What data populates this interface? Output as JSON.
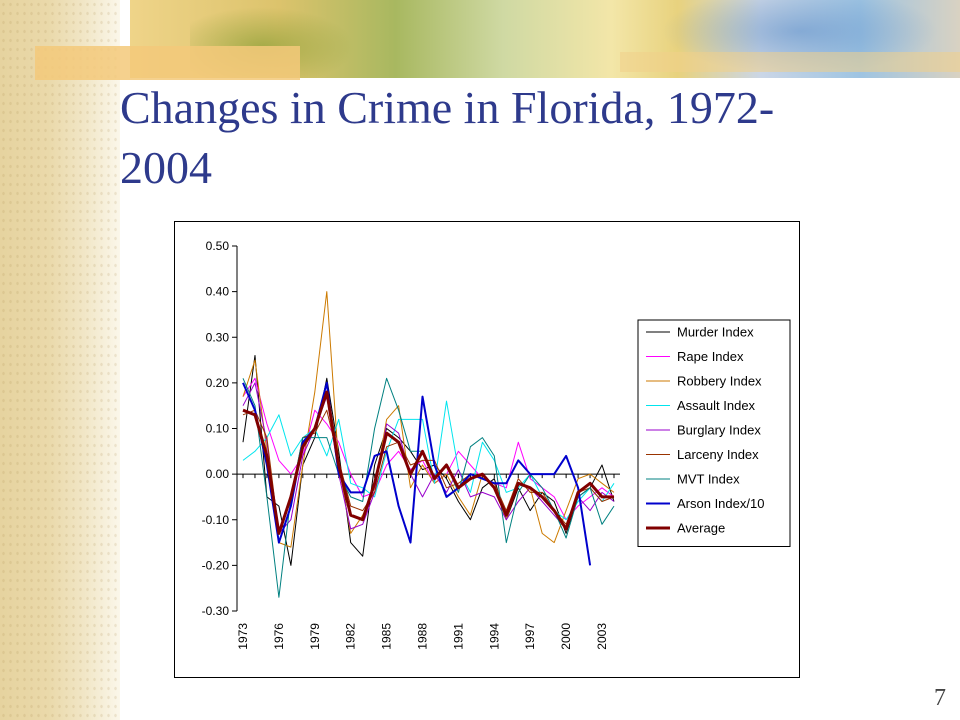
{
  "slide": {
    "title": "Changes in Crime in Florida, 1972-\n2004",
    "page_number": "7"
  },
  "chart_data": {
    "type": "line",
    "title": "",
    "xlabel": "",
    "ylabel": "",
    "ylim": [
      -0.3,
      0.5
    ],
    "y_ticks": [
      "0.50",
      "0.40",
      "0.30",
      "0.20",
      "0.10",
      "0.00",
      "-0.10",
      "-0.20",
      "-0.30"
    ],
    "x_tick_labels": [
      "1973",
      "1976",
      "1979",
      "1982",
      "1985",
      "1988",
      "1991",
      "1994",
      "1997",
      "2000",
      "2003"
    ],
    "x": [
      1973,
      1974,
      1975,
      1976,
      1977,
      1978,
      1979,
      1980,
      1981,
      1982,
      1983,
      1984,
      1985,
      1986,
      1987,
      1988,
      1989,
      1990,
      1991,
      1992,
      1993,
      1994,
      1995,
      1996,
      1997,
      1998,
      1999,
      2000,
      2001,
      2002,
      2003,
      2004
    ],
    "legend_position": "right",
    "grid": false,
    "series": [
      {
        "name": "Murder Index",
        "color": "#000000",
        "width": 1,
        "values": [
          0.07,
          0.26,
          -0.05,
          -0.07,
          -0.2,
          0.02,
          0.08,
          0.21,
          0.05,
          -0.15,
          -0.18,
          0.02,
          0.1,
          0.08,
          0.05,
          0.01,
          0.02,
          -0.01,
          -0.06,
          -0.1,
          -0.03,
          -0.01,
          -0.1,
          -0.03,
          -0.08,
          -0.04,
          -0.06,
          -0.13,
          -0.05,
          -0.03,
          0.02,
          -0.06
        ]
      },
      {
        "name": "Rape Index",
        "color": "#ff00ff",
        "width": 1,
        "values": [
          0.17,
          0.21,
          0.11,
          0.03,
          0.0,
          0.04,
          0.14,
          0.11,
          0.07,
          0.0,
          -0.05,
          -0.04,
          0.02,
          0.05,
          0.01,
          0.03,
          -0.02,
          0.0,
          0.05,
          0.02,
          -0.01,
          -0.02,
          -0.03,
          0.07,
          -0.01,
          -0.03,
          -0.05,
          -0.1,
          -0.07,
          -0.05,
          -0.03,
          -0.05
        ]
      },
      {
        "name": "Robbery Index",
        "color": "#cc7a00",
        "width": 1,
        "values": [
          0.17,
          0.25,
          0.05,
          -0.15,
          -0.16,
          0.02,
          0.18,
          0.4,
          0.02,
          -0.13,
          -0.09,
          -0.03,
          0.12,
          0.15,
          -0.03,
          0.02,
          -0.02,
          0.0,
          -0.05,
          -0.09,
          0.0,
          -0.03,
          -0.1,
          -0.02,
          -0.03,
          -0.13,
          -0.15,
          -0.08,
          -0.01,
          0.0,
          -0.02,
          -0.04
        ]
      },
      {
        "name": "Assault Index",
        "color": "#00e5ee",
        "width": 1,
        "values": [
          0.03,
          0.05,
          0.08,
          0.13,
          0.04,
          0.08,
          0.1,
          0.04,
          0.12,
          -0.02,
          -0.03,
          -0.05,
          0.05,
          0.12,
          0.12,
          0.12,
          -0.02,
          0.16,
          0.01,
          -0.04,
          0.07,
          0.03,
          -0.04,
          -0.03,
          0.0,
          -0.05,
          -0.08,
          -0.1,
          -0.06,
          -0.03,
          -0.06,
          -0.02
        ]
      },
      {
        "name": "Burglary Index",
        "color": "#9900cc",
        "width": 1,
        "values": [
          0.15,
          0.2,
          0.07,
          -0.13,
          -0.1,
          0.04,
          0.1,
          0.17,
          0.0,
          -0.12,
          -0.11,
          -0.04,
          0.11,
          0.09,
          0.0,
          -0.05,
          0.0,
          -0.04,
          0.01,
          -0.05,
          -0.04,
          -0.05,
          -0.1,
          -0.06,
          -0.03,
          -0.06,
          -0.09,
          -0.12,
          -0.05,
          -0.08,
          -0.04,
          -0.06
        ]
      },
      {
        "name": "Larceny Index",
        "color": "#993300",
        "width": 1,
        "values": [
          0.13,
          0.14,
          0.08,
          -0.13,
          -0.05,
          0.08,
          0.09,
          0.14,
          0.03,
          -0.07,
          -0.08,
          -0.04,
          0.06,
          0.07,
          0.02,
          0.03,
          0.03,
          -0.03,
          -0.02,
          0.0,
          -0.01,
          -0.02,
          -0.08,
          -0.01,
          -0.04,
          -0.04,
          -0.08,
          -0.11,
          -0.04,
          -0.03,
          -0.06,
          -0.05
        ]
      },
      {
        "name": "MVT Index",
        "color": "#008080",
        "width": 1,
        "values": [
          0.21,
          0.15,
          -0.05,
          -0.27,
          -0.05,
          0.08,
          0.08,
          0.08,
          0.0,
          -0.05,
          -0.06,
          0.1,
          0.21,
          0.14,
          0.05,
          0.05,
          -0.01,
          0.02,
          -0.04,
          0.06,
          0.08,
          0.04,
          -0.15,
          -0.04,
          0.0,
          -0.03,
          -0.08,
          -0.14,
          -0.05,
          -0.03,
          -0.11,
          -0.07
        ]
      },
      {
        "name": "Arson Index/10",
        "color": "#0000cc",
        "width": 2,
        "values": [
          0.2,
          0.14,
          0.02,
          -0.15,
          -0.07,
          0.07,
          0.1,
          0.2,
          0.0,
          -0.04,
          -0.04,
          0.04,
          0.05,
          -0.07,
          -0.15,
          0.17,
          0.02,
          -0.05,
          -0.03,
          0.0,
          -0.01,
          -0.02,
          -0.02,
          0.03,
          0.0,
          0.0,
          0.0,
          0.04,
          -0.03,
          -0.2,
          null,
          null
        ]
      },
      {
        "name": "Average",
        "color": "#800000",
        "width": 3,
        "values": [
          0.14,
          0.13,
          0.04,
          -0.13,
          -0.05,
          0.06,
          0.1,
          0.18,
          0.02,
          -0.09,
          -0.1,
          -0.02,
          0.09,
          0.07,
          0.0,
          0.05,
          -0.01,
          0.02,
          -0.03,
          -0.01,
          0.0,
          -0.03,
          -0.09,
          -0.02,
          -0.03,
          -0.05,
          -0.08,
          -0.12,
          -0.04,
          -0.02,
          -0.05,
          -0.05
        ]
      }
    ]
  }
}
